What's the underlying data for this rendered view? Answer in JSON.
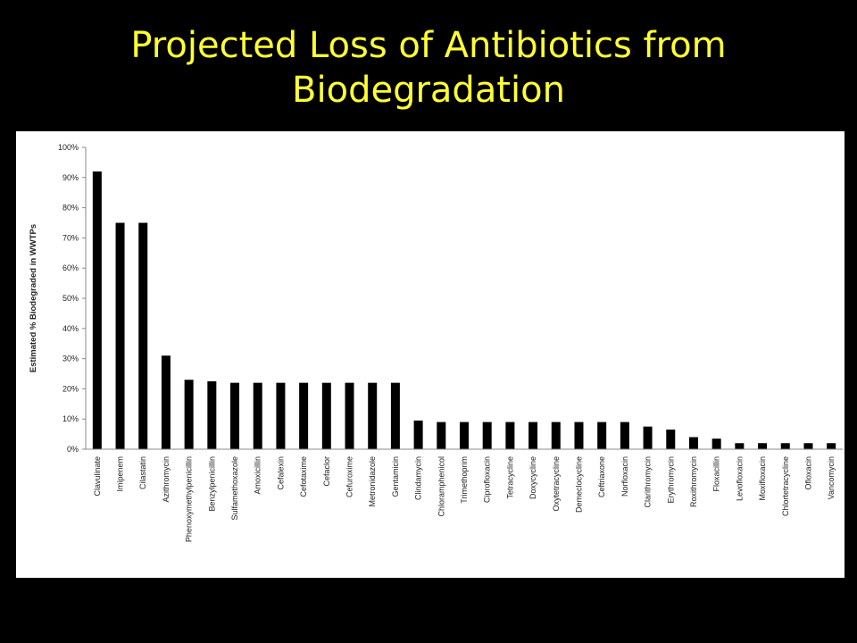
{
  "slide": {
    "title_line1": "Projected Loss of Antibiotics from",
    "title_line2": "Biodegradation",
    "title_color": "#FFFF33",
    "background": "#000000"
  },
  "chart_data": {
    "type": "bar",
    "title": "",
    "xlabel": "",
    "ylabel": "Estimated % Biodegraded in WWTPs",
    "ylim": [
      0,
      100
    ],
    "yticks": [
      "0%",
      "10%",
      "20%",
      "30%",
      "40%",
      "50%",
      "60%",
      "70%",
      "80%",
      "90%",
      "100%"
    ],
    "grid": false,
    "bar_color": "#000000",
    "categories": [
      "Clavulinate",
      "Imipenem",
      "Cilastatin",
      "Azithromycin",
      "Phenoxymethylpenicillin",
      "Benzylpenicillin",
      "Sulfamethoxazole",
      "Amoxicillin",
      "Cefalexin",
      "Cefotaxime",
      "Cefaclor",
      "Cefuroxime",
      "Metronidazole",
      "Gentamicin",
      "Clindamycin",
      "Chloramphenicol",
      "Trimethoprim",
      "Ciprofloxacin",
      "Tetracycline",
      "Doxycycline",
      "Oxytetracycline",
      "Demeclocycline",
      "Ceftriaxone",
      "Norfloxacin",
      "Clarithromycin",
      "Erythromycin",
      "Roxithromycin",
      "Floxacillin",
      "Levofloxacin",
      "Moxifloxacin",
      "Chlortetracycline",
      "Ofloxacin",
      "Vancomycin"
    ],
    "values": [
      92,
      75,
      75,
      31,
      23,
      22.5,
      22,
      22,
      22,
      22,
      22,
      22,
      22,
      22,
      9.5,
      9,
      9,
      9,
      9,
      9,
      9,
      9,
      9,
      9,
      7.5,
      6.5,
      4,
      3.5,
      2,
      2,
      2,
      2,
      2
    ]
  }
}
